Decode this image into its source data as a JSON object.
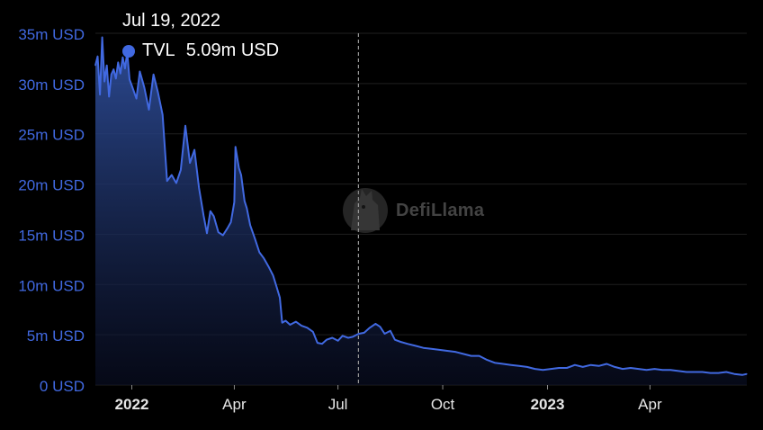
{
  "chart_data": {
    "type": "area",
    "title": "",
    "xlabel": "",
    "ylabel": "",
    "ylim": [
      0,
      35
    ],
    "y_unit": "m USD",
    "y_ticks": [
      {
        "value": 0,
        "label": "0 USD"
      },
      {
        "value": 5,
        "label": "5m USD"
      },
      {
        "value": 10,
        "label": "10m USD"
      },
      {
        "value": 15,
        "label": "15m USD"
      },
      {
        "value": 20,
        "label": "20m USD"
      },
      {
        "value": 25,
        "label": "25m USD"
      },
      {
        "value": 30,
        "label": "30m USD"
      },
      {
        "value": 35,
        "label": "35m USD"
      }
    ],
    "x_range": [
      "2021-11-30",
      "2023-06-25"
    ],
    "x_ticks": [
      {
        "date": "2022-01-01",
        "label": "2022",
        "bold": true
      },
      {
        "date": "2022-04-01",
        "label": "Apr",
        "bold": false
      },
      {
        "date": "2022-07-01",
        "label": "Jul",
        "bold": false
      },
      {
        "date": "2022-10-01",
        "label": "Oct",
        "bold": false
      },
      {
        "date": "2023-01-01",
        "label": "2023",
        "bold": true
      },
      {
        "date": "2023-04-01",
        "label": "Apr",
        "bold": false
      }
    ],
    "grid": true,
    "line_color": "#4169e1",
    "series": [
      {
        "name": "TVL",
        "points": [
          [
            "2021-11-30",
            31.8
          ],
          [
            "2021-12-02",
            32.7
          ],
          [
            "2021-12-04",
            28.9
          ],
          [
            "2021-12-06",
            34.6
          ],
          [
            "2021-12-08",
            30.2
          ],
          [
            "2021-12-10",
            31.8
          ],
          [
            "2021-12-12",
            28.7
          ],
          [
            "2021-12-14",
            30.9
          ],
          [
            "2021-12-16",
            31.4
          ],
          [
            "2021-12-18",
            30.5
          ],
          [
            "2021-12-20",
            32.1
          ],
          [
            "2021-12-22",
            31.0
          ],
          [
            "2021-12-24",
            32.6
          ],
          [
            "2021-12-26",
            31.5
          ],
          [
            "2021-12-28",
            33.1
          ],
          [
            "2021-12-30",
            30.4
          ],
          [
            "2022-01-01",
            29.8
          ],
          [
            "2022-01-05",
            28.5
          ],
          [
            "2022-01-08",
            31.2
          ],
          [
            "2022-01-12",
            29.6
          ],
          [
            "2022-01-16",
            27.4
          ],
          [
            "2022-01-20",
            30.9
          ],
          [
            "2022-01-24",
            29.1
          ],
          [
            "2022-01-28",
            26.9
          ],
          [
            "2022-02-01",
            20.3
          ],
          [
            "2022-02-05",
            20.9
          ],
          [
            "2022-02-09",
            20.1
          ],
          [
            "2022-02-13",
            21.4
          ],
          [
            "2022-02-17",
            25.8
          ],
          [
            "2022-02-21",
            22.1
          ],
          [
            "2022-02-25",
            23.4
          ],
          [
            "2022-03-01",
            19.6
          ],
          [
            "2022-03-05",
            16.9
          ],
          [
            "2022-03-08",
            15.1
          ],
          [
            "2022-03-11",
            17.3
          ],
          [
            "2022-03-14",
            16.8
          ],
          [
            "2022-03-18",
            15.2
          ],
          [
            "2022-03-22",
            14.9
          ],
          [
            "2022-03-26",
            15.6
          ],
          [
            "2022-03-29",
            16.2
          ],
          [
            "2022-04-01",
            18.2
          ],
          [
            "2022-04-02",
            23.7
          ],
          [
            "2022-04-05",
            21.6
          ],
          [
            "2022-04-07",
            20.9
          ],
          [
            "2022-04-10",
            18.3
          ],
          [
            "2022-04-12",
            17.6
          ],
          [
            "2022-04-15",
            15.9
          ],
          [
            "2022-04-19",
            14.6
          ],
          [
            "2022-04-23",
            13.2
          ],
          [
            "2022-04-27",
            12.6
          ],
          [
            "2022-05-01",
            11.8
          ],
          [
            "2022-05-05",
            10.9
          ],
          [
            "2022-05-08",
            9.8
          ],
          [
            "2022-05-11",
            8.7
          ],
          [
            "2022-05-13",
            6.2
          ],
          [
            "2022-05-16",
            6.4
          ],
          [
            "2022-05-20",
            6.0
          ],
          [
            "2022-05-25",
            6.3
          ],
          [
            "2022-05-30",
            5.9
          ],
          [
            "2022-06-04",
            5.7
          ],
          [
            "2022-06-09",
            5.3
          ],
          [
            "2022-06-13",
            4.2
          ],
          [
            "2022-06-17",
            4.1
          ],
          [
            "2022-06-21",
            4.5
          ],
          [
            "2022-06-26",
            4.7
          ],
          [
            "2022-07-01",
            4.4
          ],
          [
            "2022-07-05",
            4.9
          ],
          [
            "2022-07-10",
            4.7
          ],
          [
            "2022-07-14",
            4.8
          ],
          [
            "2022-07-19",
            5.09
          ],
          [
            "2022-07-24",
            5.2
          ],
          [
            "2022-07-29",
            5.7
          ],
          [
            "2022-08-03",
            6.1
          ],
          [
            "2022-08-07",
            5.8
          ],
          [
            "2022-08-11",
            5.1
          ],
          [
            "2022-08-16",
            5.4
          ],
          [
            "2022-08-20",
            4.5
          ],
          [
            "2022-08-25",
            4.3
          ],
          [
            "2022-08-31",
            4.1
          ],
          [
            "2022-09-07",
            3.9
          ],
          [
            "2022-09-14",
            3.7
          ],
          [
            "2022-09-21",
            3.6
          ],
          [
            "2022-09-28",
            3.5
          ],
          [
            "2022-10-05",
            3.4
          ],
          [
            "2022-10-12",
            3.3
          ],
          [
            "2022-10-19",
            3.1
          ],
          [
            "2022-10-26",
            2.9
          ],
          [
            "2022-11-02",
            2.9
          ],
          [
            "2022-11-09",
            2.5
          ],
          [
            "2022-11-16",
            2.2
          ],
          [
            "2022-11-23",
            2.1
          ],
          [
            "2022-11-30",
            2.0
          ],
          [
            "2022-12-07",
            1.9
          ],
          [
            "2022-12-14",
            1.8
          ],
          [
            "2022-12-21",
            1.6
          ],
          [
            "2022-12-28",
            1.5
          ],
          [
            "2023-01-04",
            1.6
          ],
          [
            "2023-01-11",
            1.7
          ],
          [
            "2023-01-18",
            1.7
          ],
          [
            "2023-01-25",
            2.0
          ],
          [
            "2023-02-01",
            1.8
          ],
          [
            "2023-02-08",
            2.0
          ],
          [
            "2023-02-15",
            1.9
          ],
          [
            "2023-02-22",
            2.1
          ],
          [
            "2023-03-01",
            1.8
          ],
          [
            "2023-03-08",
            1.6
          ],
          [
            "2023-03-15",
            1.7
          ],
          [
            "2023-03-22",
            1.6
          ],
          [
            "2023-03-29",
            1.5
          ],
          [
            "2023-04-05",
            1.6
          ],
          [
            "2023-04-12",
            1.5
          ],
          [
            "2023-04-19",
            1.5
          ],
          [
            "2023-04-26",
            1.4
          ],
          [
            "2023-05-03",
            1.3
          ],
          [
            "2023-05-10",
            1.3
          ],
          [
            "2023-05-17",
            1.3
          ],
          [
            "2023-05-24",
            1.2
          ],
          [
            "2023-05-31",
            1.2
          ],
          [
            "2023-06-07",
            1.3
          ],
          [
            "2023-06-14",
            1.1
          ],
          [
            "2023-06-21",
            1.0
          ],
          [
            "2023-06-25",
            1.1
          ]
        ]
      }
    ],
    "crosshair": {
      "date": "2022-07-19"
    },
    "tooltip": {
      "date_label": "Jul 19, 2022",
      "series_label": "TVL",
      "value_label": "5.09m USD"
    }
  },
  "watermark": {
    "text": "DefiLlama"
  }
}
